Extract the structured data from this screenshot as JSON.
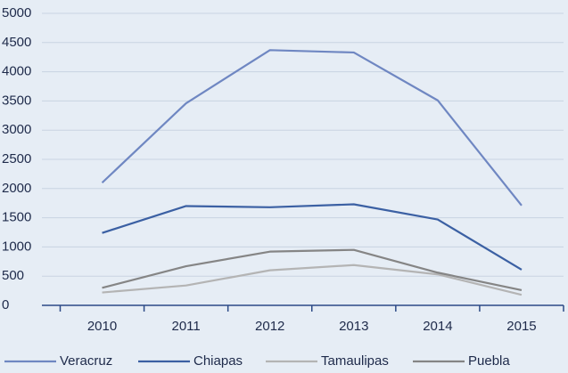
{
  "chart_data": {
    "type": "line",
    "categories": [
      "2010",
      "2011",
      "2012",
      "2013",
      "2014",
      "2015"
    ],
    "series": [
      {
        "name": "Veracruz",
        "color": "#6f87c2",
        "values": [
          2100,
          3460,
          4370,
          4330,
          3510,
          1710
        ]
      },
      {
        "name": "Chiapas",
        "color": "#3b60a3",
        "values": [
          1240,
          1700,
          1680,
          1730,
          1470,
          610
        ]
      },
      {
        "name": "Tamaulipas",
        "color": "#b4b4b4",
        "values": [
          220,
          340,
          600,
          690,
          530,
          180
        ]
      },
      {
        "name": "Puebla",
        "color": "#858585",
        "values": [
          300,
          670,
          920,
          950,
          560,
          260
        ]
      }
    ],
    "ylim": [
      0,
      5000
    ],
    "yticks": [
      0,
      500,
      1000,
      1500,
      2000,
      2500,
      3000,
      3500,
      4000,
      4500,
      5000
    ],
    "grid": true,
    "legend": "bottom"
  }
}
